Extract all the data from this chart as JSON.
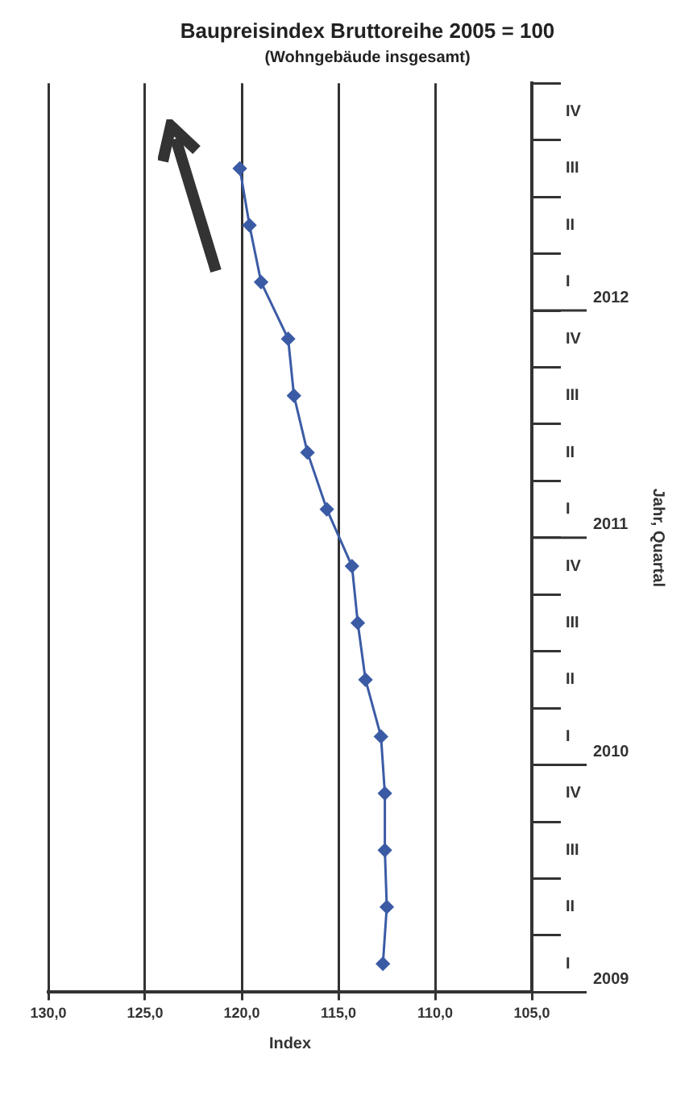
{
  "chart_data": {
    "type": "line",
    "orientation": "horizontal",
    "title": "Baupreisindex Bruttoreihe 2005 = 100",
    "subtitle": "(Wohngebäude insgesamt)",
    "xlabel": "Index",
    "ylabel": "Jahr, Quartal",
    "categories": [
      "IV",
      "III",
      "II",
      "I",
      "IV",
      "III",
      "II",
      "I",
      "IV",
      "III",
      "II",
      "I",
      "IV",
      "III",
      "II",
      "I"
    ],
    "annotations": [
      "2012",
      "2011",
      "2010",
      "2009"
    ],
    "series": [
      {
        "color": "#3b5ba5",
        "values": [
          null,
          120.1,
          119.6,
          119.0,
          117.6,
          117.3,
          116.6,
          115.6,
          114.3,
          114.0,
          113.6,
          112.8,
          112.6,
          112.6,
          112.5,
          112.7
        ]
      }
    ],
    "xlim": [
      130,
      105
    ],
    "xticks": [
      {
        "value": 130,
        "label": "130,0"
      },
      {
        "value": 125,
        "label": "125,0"
      },
      {
        "value": 120,
        "label": "120,0"
      },
      {
        "value": 115,
        "label": "115,0"
      },
      {
        "value": 110,
        "label": "110,0"
      },
      {
        "value": 105,
        "label": "105,0"
      }
    ],
    "grid": "x",
    "legend": false,
    "marker": "diamond",
    "line_style": "solid"
  }
}
